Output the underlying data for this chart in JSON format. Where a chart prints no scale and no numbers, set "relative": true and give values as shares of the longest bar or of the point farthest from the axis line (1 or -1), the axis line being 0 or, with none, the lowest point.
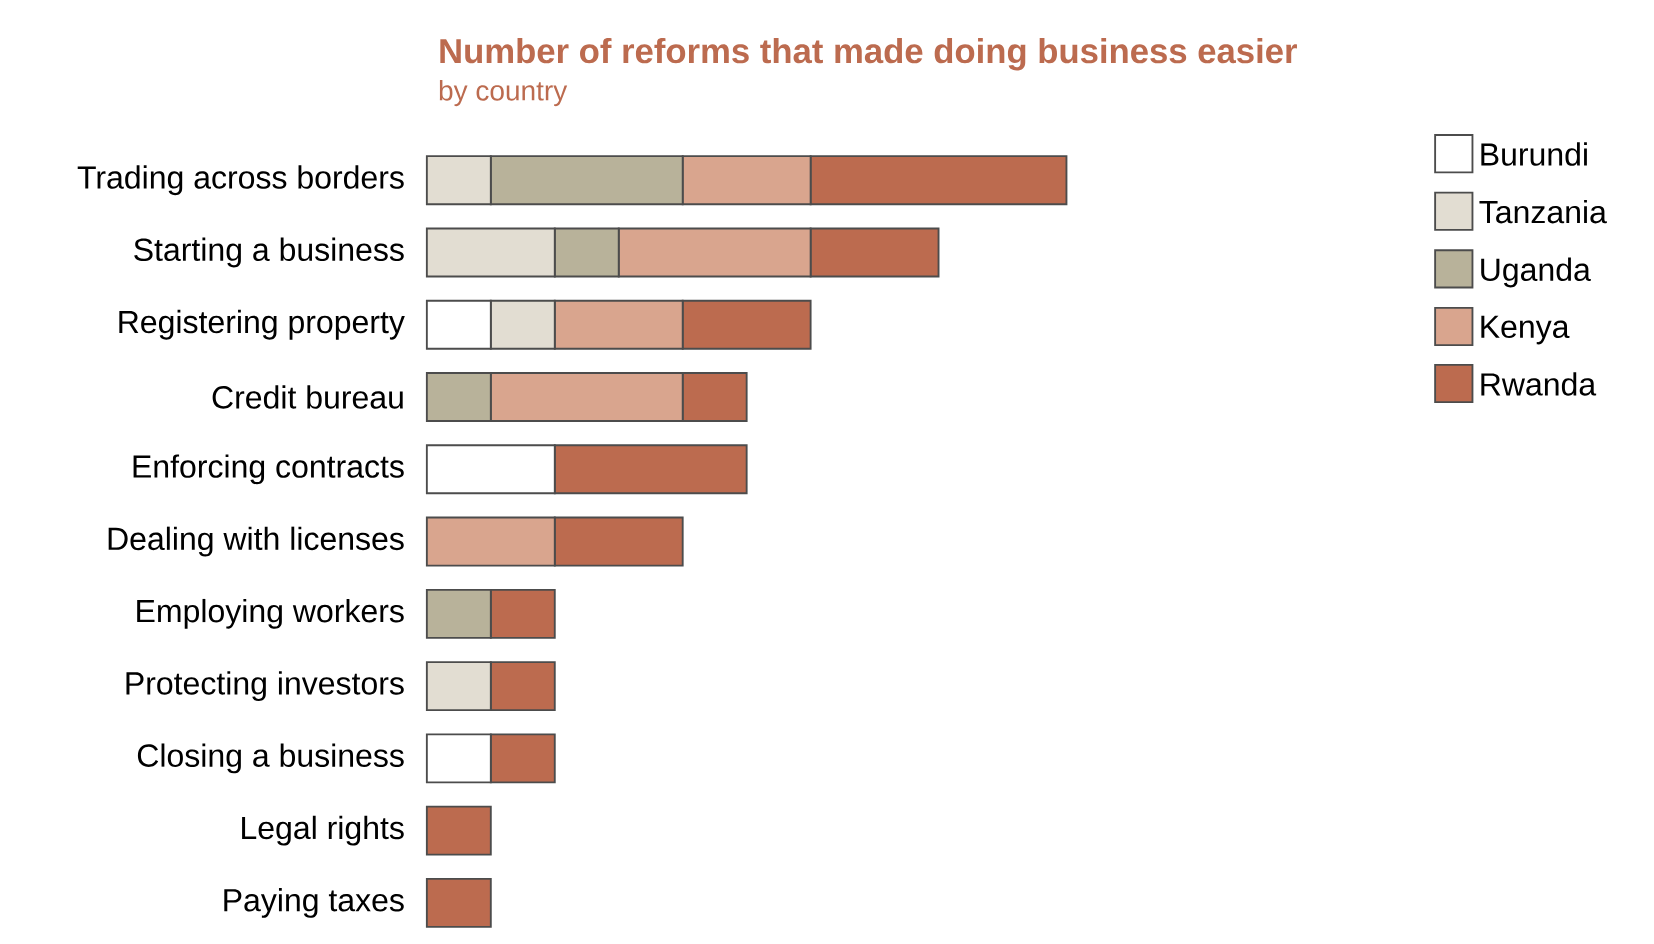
{
  "chart_data": {
    "type": "bar",
    "title": "Number of reforms that made doing business easier",
    "subtitle": "by country",
    "orientation": "horizontal",
    "stacked": true,
    "relative": true,
    "legend": "right",
    "categories": [
      "Trading across borders",
      "Starting a business",
      "Registering property",
      "Credit bureau",
      "Enforcing contracts",
      "Dealing with licenses",
      "Employing workers",
      "Protecting investors",
      "Closing a business",
      "Legal rights",
      "Paying taxes"
    ],
    "series": [
      {
        "name": "Burundi",
        "color": "#ffffff",
        "values": [
          0,
          0,
          0.1,
          0,
          0.2,
          0,
          0,
          0,
          0.1,
          0,
          0
        ]
      },
      {
        "name": "Tanzania",
        "color": "#e2ddd2",
        "values": [
          0.1,
          0.2,
          0.1,
          0,
          0,
          0,
          0,
          0.1,
          0,
          0,
          0
        ]
      },
      {
        "name": "Uganda",
        "color": "#b8b29a",
        "values": [
          0.3,
          0.1,
          0,
          0.1,
          0,
          0,
          0.1,
          0,
          0,
          0,
          0
        ]
      },
      {
        "name": "Kenya",
        "color": "#d9a58e",
        "values": [
          0.2,
          0.3,
          0.2,
          0.3,
          0,
          0.2,
          0,
          0,
          0,
          0,
          0
        ]
      },
      {
        "name": "Rwanda",
        "color": "#bc6b4f",
        "values": [
          0.4,
          0.2,
          0.2,
          0.1,
          0.3,
          0.2,
          0.1,
          0.1,
          0.1,
          0.1,
          0.1
        ]
      }
    ]
  }
}
